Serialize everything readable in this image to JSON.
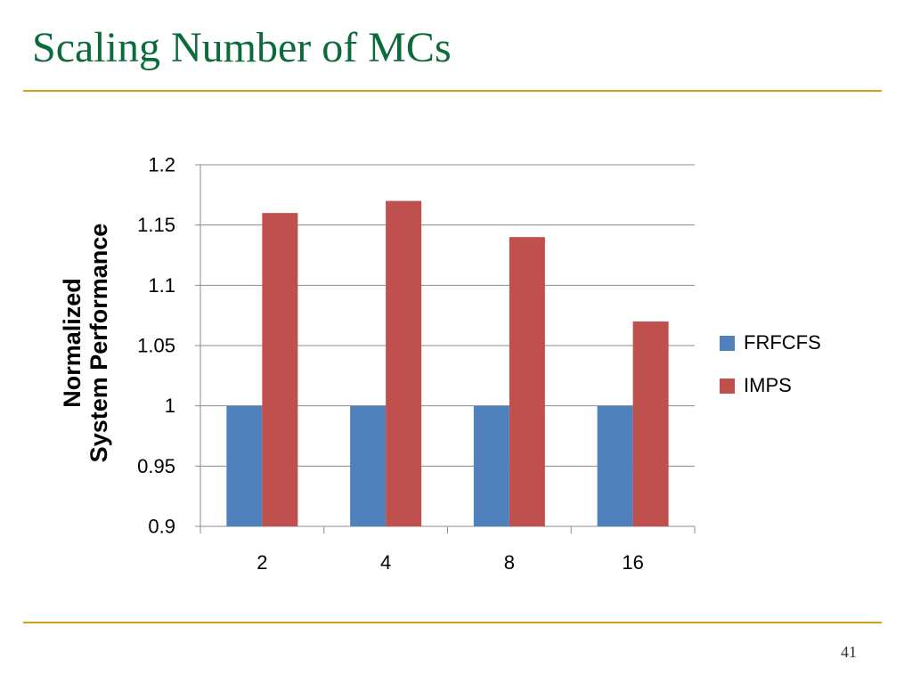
{
  "slide": {
    "title": "Scaling Number of MCs",
    "page_number": "41",
    "rule_color": "#d4a017",
    "title_color": "#0b6b3a"
  },
  "chart_data": {
    "type": "bar",
    "title": "",
    "xlabel": "",
    "ylabel_lines": [
      "Normalized",
      "System Performance"
    ],
    "categories": [
      "2",
      "4",
      "8",
      "16"
    ],
    "series": [
      {
        "name": "FRFCFS",
        "color": "#4f81bd",
        "values": [
          1.0,
          1.0,
          1.0,
          1.0
        ]
      },
      {
        "name": "IMPS",
        "color": "#c0504d",
        "values": [
          1.16,
          1.17,
          1.14,
          1.07
        ]
      }
    ],
    "ylim": [
      0.9,
      1.2
    ],
    "yticks": [
      "0.9",
      "0.95",
      "1",
      "1.05",
      "1.1",
      "1.15",
      "1.2"
    ],
    "grid": true,
    "legend_position": "right"
  }
}
